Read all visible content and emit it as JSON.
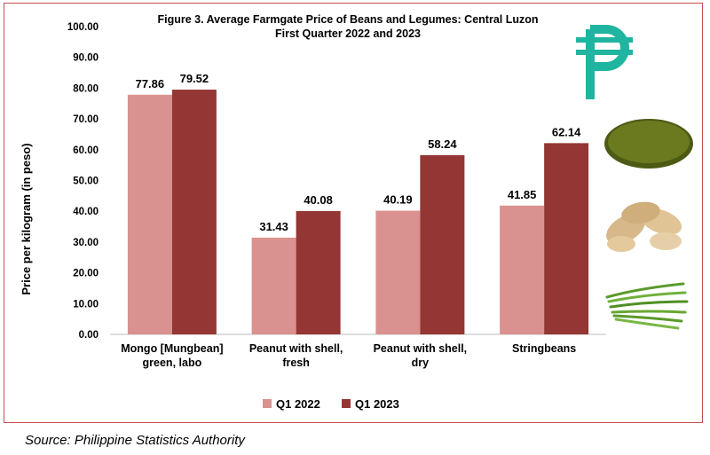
{
  "chart_data": {
    "type": "bar",
    "title_lines": [
      "Figure 3. Average Farmgate Price of Beans and Legumes: Central Luzon",
      "First Quarter 2022 and 2023"
    ],
    "ylabel": "Price per kilogram (in peso)",
    "xlabel": "",
    "ylim": [
      0,
      100
    ],
    "yticks": [
      "0.00",
      "10.00",
      "20.00",
      "30.00",
      "40.00",
      "50.00",
      "60.00",
      "70.00",
      "80.00",
      "90.00",
      "100.00"
    ],
    "categories": [
      [
        "Mongo [Mungbean]",
        "green, labo"
      ],
      [
        "Peanut with shell,",
        "fresh"
      ],
      [
        "Peanut with shell,",
        "dry"
      ],
      [
        "Stringbeans"
      ]
    ],
    "series": [
      {
        "name": "Q1 2022",
        "color": "#d9928f",
        "values": [
          77.86,
          31.43,
          40.19,
          41.85
        ],
        "labels": [
          "77.86",
          "31.43",
          "40.19",
          "41.85"
        ]
      },
      {
        "name": "Q1 2023",
        "color": "#943634",
        "values": [
          79.52,
          40.08,
          58.24,
          62.14
        ],
        "labels": [
          "79.52",
          "40.08",
          "58.24",
          "62.14"
        ]
      }
    ],
    "grid": false,
    "legend": "bottom-center"
  },
  "decorations": {
    "peso_icon_color": "#1fb5a0",
    "icons": [
      "peso-sign-icon",
      "mungbean-image",
      "peanut-image",
      "stringbean-image"
    ]
  },
  "source_note": "Source: Philippine Statistics Authority"
}
